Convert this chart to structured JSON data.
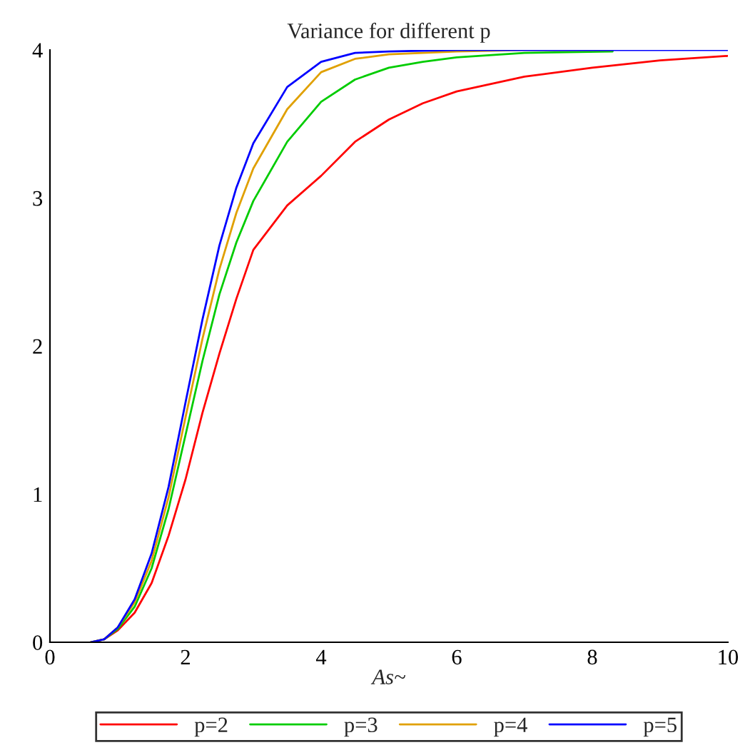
{
  "chart_data": {
    "type": "line",
    "title": "Variance for different p",
    "xlabel": "As~",
    "xlim": [
      0,
      10
    ],
    "ylim": [
      0,
      4
    ],
    "xticks": [
      0,
      2,
      4,
      6,
      8,
      10
    ],
    "yticks": [
      0,
      1,
      2,
      3,
      4
    ],
    "grid": false,
    "legend": "bottom",
    "marker": "none",
    "line_style": "solid",
    "series": [
      {
        "name": "p=2",
        "color": "#ff0000",
        "x": [
          0.6,
          0.8,
          1.0,
          1.25,
          1.5,
          1.75,
          2.0,
          2.25,
          2.5,
          2.75,
          3.0,
          3.5,
          4.0,
          4.5,
          5.0,
          5.5,
          6.0,
          7.0,
          8.0,
          9.0,
          10.0
        ],
        "values": [
          0,
          0.02,
          0.08,
          0.2,
          0.4,
          0.72,
          1.1,
          1.55,
          1.95,
          2.32,
          2.65,
          2.95,
          3.15,
          3.38,
          3.53,
          3.64,
          3.72,
          3.82,
          3.88,
          3.93,
          3.96
        ]
      },
      {
        "name": "p=3",
        "color": "#00cc00",
        "x": [
          0.6,
          0.8,
          1.0,
          1.25,
          1.5,
          1.75,
          2.0,
          2.25,
          2.5,
          2.75,
          3.0,
          3.5,
          4.0,
          4.5,
          5.0,
          5.5,
          6.0,
          7.0,
          8.3
        ],
        "values": [
          0,
          0.02,
          0.09,
          0.24,
          0.5,
          0.9,
          1.4,
          1.9,
          2.35,
          2.7,
          2.98,
          3.38,
          3.65,
          3.8,
          3.88,
          3.92,
          3.95,
          3.98,
          3.99
        ]
      },
      {
        "name": "p=4",
        "color": "#e0a000",
        "x": [
          0.6,
          0.8,
          1.0,
          1.25,
          1.5,
          1.75,
          2.0,
          2.25,
          2.5,
          2.75,
          3.0,
          3.5,
          4.0,
          4.5,
          5.0,
          6.0,
          7.0,
          8.3
        ],
        "values": [
          0,
          0.02,
          0.1,
          0.27,
          0.55,
          0.98,
          1.52,
          2.05,
          2.52,
          2.9,
          3.2,
          3.6,
          3.85,
          3.94,
          3.97,
          3.99,
          4.0,
          4.0
        ]
      },
      {
        "name": "p=5",
        "color": "#0000ff",
        "x": [
          0.6,
          0.8,
          1.0,
          1.25,
          1.5,
          1.75,
          2.0,
          2.25,
          2.5,
          2.75,
          3.0,
          3.5,
          4.0,
          4.5,
          5.0,
          6.0,
          8.0,
          10.0
        ],
        "values": [
          0,
          0.02,
          0.1,
          0.29,
          0.6,
          1.05,
          1.62,
          2.18,
          2.68,
          3.07,
          3.37,
          3.75,
          3.92,
          3.98,
          3.99,
          4.0,
          4.0,
          4.0
        ]
      }
    ]
  }
}
